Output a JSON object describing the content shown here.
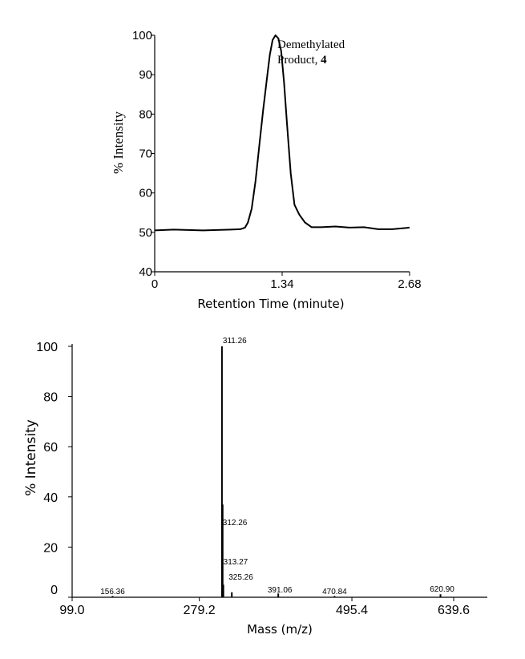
{
  "chart_data": [
    {
      "type": "line",
      "title": "",
      "xlabel": "Retention Time (minute)",
      "ylabel": "% Intensity",
      "xlim": [
        0,
        2.68
      ],
      "ylim": [
        40,
        100
      ],
      "xticks": [
        "0",
        "1.34",
        "2.68"
      ],
      "yticks": [
        "40",
        "50",
        "60",
        "70",
        "80",
        "90",
        "100"
      ],
      "annotation": {
        "line1": "Demethylated",
        "line2_text": "Product, ",
        "line2_bold": "4"
      },
      "series": [
        {
          "x": [
            0,
            0.2,
            0.5,
            0.8,
            0.9,
            0.95,
            0.98,
            1.02,
            1.06,
            1.1,
            1.14,
            1.18,
            1.21,
            1.24,
            1.27,
            1.3,
            1.33,
            1.36,
            1.39,
            1.43,
            1.47,
            1.52,
            1.58,
            1.65,
            1.75,
            1.9,
            2.05,
            2.2,
            2.35,
            2.5,
            2.68
          ],
          "y": [
            50.5,
            50.7,
            50.5,
            50.7,
            50.8,
            51.2,
            52.5,
            56,
            63,
            72,
            81,
            89,
            95,
            98.8,
            100,
            99.2,
            96,
            88,
            78,
            65,
            57,
            54.5,
            52.5,
            51.3,
            51.3,
            51.5,
            51.2,
            51.3,
            50.8,
            50.8,
            51.2
          ]
        }
      ]
    },
    {
      "type": "bar",
      "title": "",
      "xlabel": "Mass (m/z)",
      "ylabel": "% Intensity",
      "xlim": [
        99.0,
        639.6
      ],
      "ylim": [
        0,
        100
      ],
      "xticks": [
        "99.0",
        "279.2",
        "495.4",
        "639.6"
      ],
      "yticks": [
        "0",
        "20",
        "40",
        "60",
        "80",
        "100"
      ],
      "peaks": [
        {
          "mz": 156.36,
          "intensity": 0.5,
          "label": "156.36"
        },
        {
          "mz": 311.26,
          "intensity": 100,
          "label": "311.26"
        },
        {
          "mz": 312.26,
          "intensity": 37,
          "label": "312.26"
        },
        {
          "mz": 313.27,
          "intensity": 5,
          "label": "313.27"
        },
        {
          "mz": 325.26,
          "intensity": 2,
          "label": "325.26"
        },
        {
          "mz": 391.06,
          "intensity": 1.5,
          "label": "391.06"
        },
        {
          "mz": 470.84,
          "intensity": 0.5,
          "label": "470.84"
        },
        {
          "mz": 620.9,
          "intensity": 1.2,
          "label": "620.90"
        }
      ]
    }
  ]
}
